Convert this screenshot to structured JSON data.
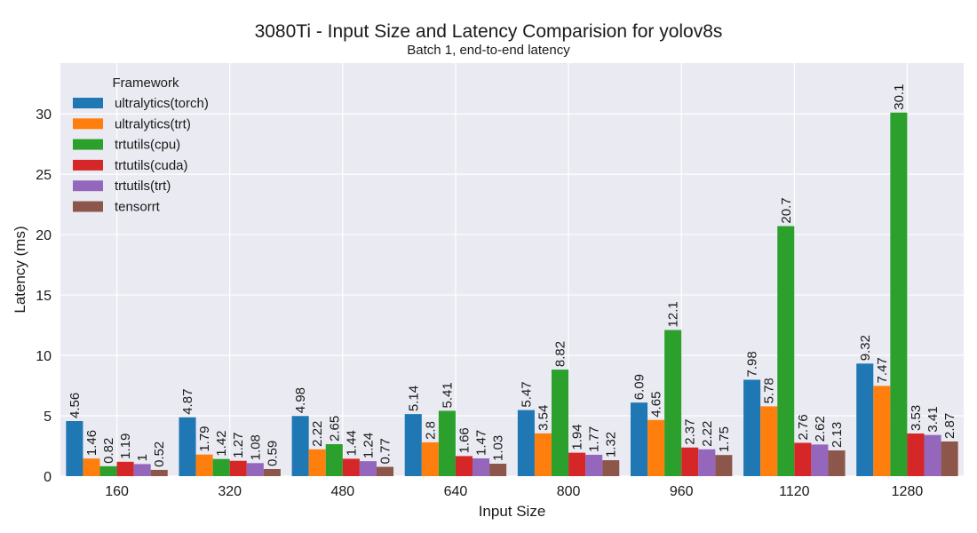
{
  "chart_data": {
    "type": "bar",
    "title": "3080Ti - Input Size and Latency Comparision for yolov8s",
    "subtitle": "Batch 1, end-to-end latency",
    "xlabel": "Input Size",
    "ylabel": "Latency (ms)",
    "categories": [
      "160",
      "320",
      "480",
      "640",
      "800",
      "960",
      "1120",
      "1280"
    ],
    "ylim": [
      0,
      34.2
    ],
    "yticks": [
      0,
      5,
      10,
      15,
      20,
      25,
      30
    ],
    "grid": true,
    "legend": {
      "title": "Framework",
      "placement": "top-left"
    },
    "series": [
      {
        "name": "ultralytics(torch)",
        "color": "#1f77b4",
        "values": [
          4.56,
          4.87,
          4.98,
          5.14,
          5.47,
          6.09,
          7.98,
          9.32
        ],
        "labels": [
          "4.56",
          "4.87",
          "4.98",
          "5.14",
          "5.47",
          "6.09",
          "7.98",
          "9.32"
        ]
      },
      {
        "name": "ultralytics(trt)",
        "color": "#ff7f0e",
        "values": [
          1.46,
          1.79,
          2.22,
          2.8,
          3.54,
          4.65,
          5.78,
          7.47
        ],
        "labels": [
          "1.46",
          "1.79",
          "2.22",
          "2.8",
          "3.54",
          "4.65",
          "5.78",
          "7.47"
        ]
      },
      {
        "name": "trtutils(cpu)",
        "color": "#2ca02c",
        "values": [
          0.82,
          1.42,
          2.65,
          5.41,
          8.82,
          12.1,
          20.7,
          30.1
        ],
        "labels": [
          "0.82",
          "1.42",
          "2.65",
          "5.41",
          "8.82",
          "12.1",
          "20.7",
          "30.1"
        ]
      },
      {
        "name": "trtutils(cuda)",
        "color": "#d62728",
        "values": [
          1.19,
          1.27,
          1.44,
          1.66,
          1.94,
          2.37,
          2.76,
          3.53
        ],
        "labels": [
          "1.19",
          "1.27",
          "1.44",
          "1.66",
          "1.94",
          "2.37",
          "2.76",
          "3.53"
        ]
      },
      {
        "name": "trtutils(trt)",
        "color": "#9467bd",
        "values": [
          1,
          1.08,
          1.24,
          1.47,
          1.77,
          2.22,
          2.62,
          3.41
        ],
        "labels": [
          "1",
          "1.08",
          "1.24",
          "1.47",
          "1.77",
          "2.22",
          "2.62",
          "3.41"
        ]
      },
      {
        "name": "tensorrt",
        "color": "#8c564b",
        "values": [
          0.52,
          0.59,
          0.77,
          1.03,
          1.32,
          1.75,
          2.13,
          2.87
        ],
        "labels": [
          "0.52",
          "0.59",
          "0.77",
          "1.03",
          "1.32",
          "1.75",
          "2.13",
          "2.87"
        ]
      }
    ]
  },
  "style": {
    "plot_background": "#eaeaf2",
    "grid_color": "#ffffff",
    "text_color": "#1a1a1a"
  }
}
